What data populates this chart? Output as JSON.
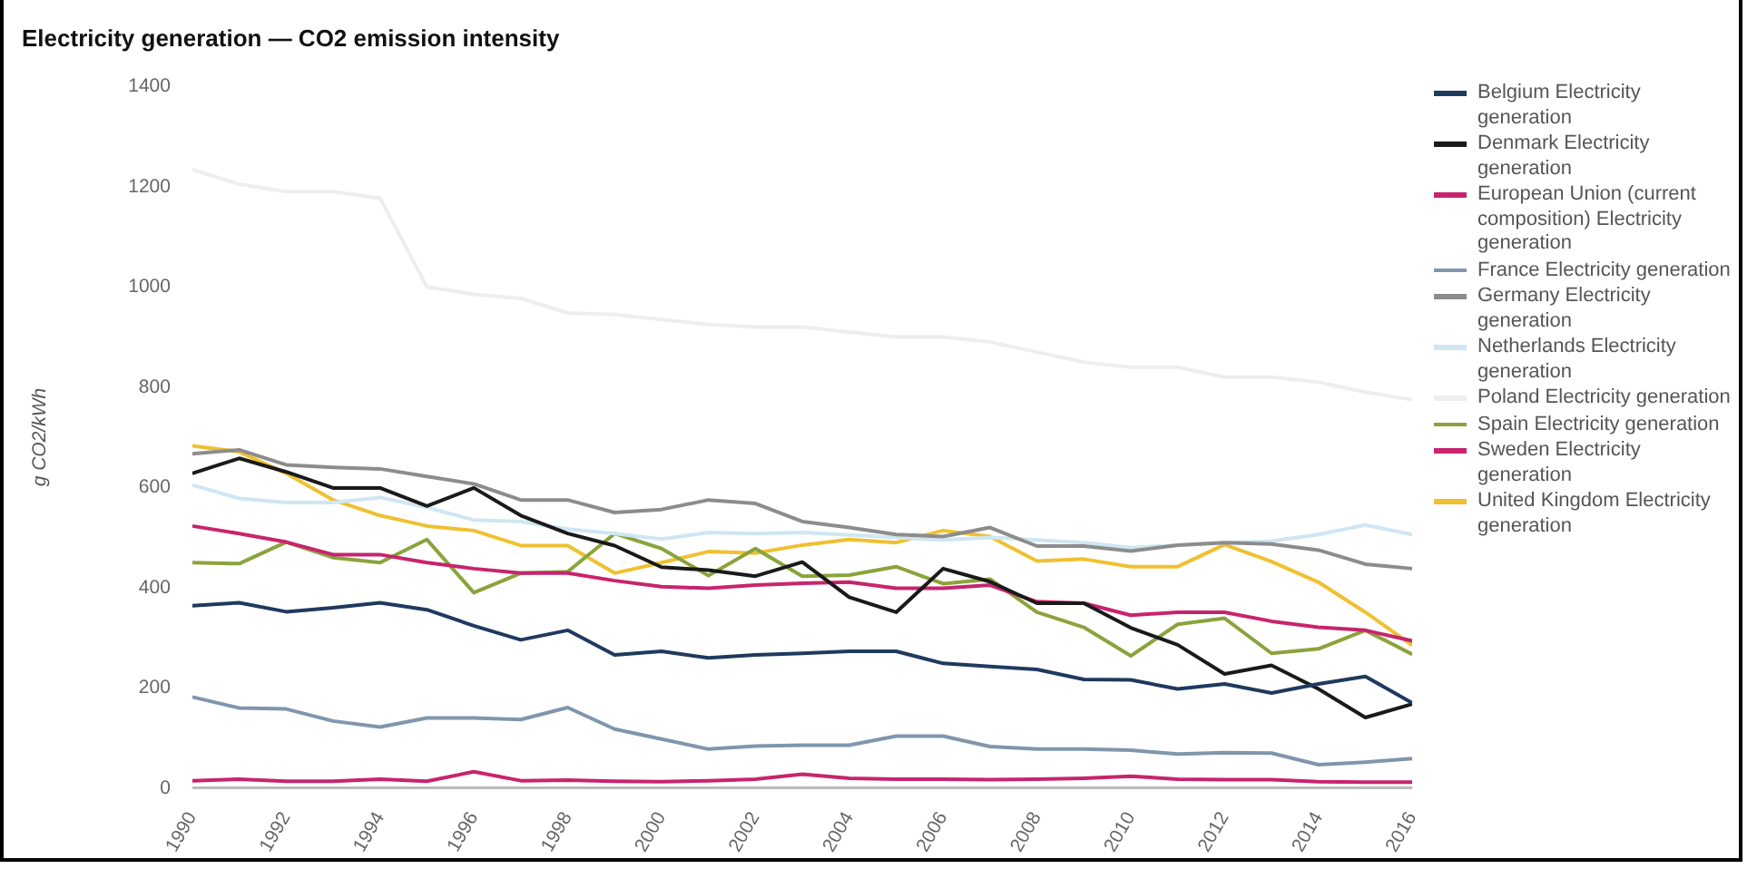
{
  "chart_data": {
    "type": "line",
    "title": "Electricity generation — CO2 emission intensity",
    "ylabel": "g CO2/kWh",
    "x": [
      1990,
      1991,
      1992,
      1993,
      1994,
      1995,
      1996,
      1997,
      1998,
      1999,
      2000,
      2001,
      2002,
      2003,
      2004,
      2005,
      2006,
      2007,
      2008,
      2009,
      2010,
      2011,
      2012,
      2013,
      2014,
      2015,
      2016
    ],
    "xlim": [
      1990,
      2016
    ],
    "xticks": [
      1990,
      1992,
      1994,
      1996,
      1998,
      2000,
      2002,
      2004,
      2006,
      2008,
      2010,
      2012,
      2014,
      2016
    ],
    "ylim": [
      0,
      1400
    ],
    "yticks": [
      0,
      200,
      400,
      600,
      800,
      1000,
      1200,
      1400
    ],
    "grid": false,
    "legend": "right",
    "marker": "none",
    "line_style": "solid",
    "series": [
      {
        "name": "Belgium Electricity generation",
        "color": "#1f3a5f",
        "values": [
          364,
          370,
          352,
          360,
          370,
          356,
          324,
          296,
          315,
          266,
          273,
          260,
          266,
          269,
          273,
          273,
          249,
          243,
          237,
          217,
          216,
          198,
          208,
          190,
          208,
          223,
          170
        ]
      },
      {
        "name": "Denmark Electricity generation",
        "color": "#1a1a1a",
        "values": [
          628,
          658,
          631,
          599,
          599,
          563,
          599,
          544,
          508,
          484,
          441,
          435,
          423,
          451,
          381,
          351,
          438,
          412,
          369,
          369,
          320,
          286,
          228,
          245,
          198,
          141,
          168
        ]
      },
      {
        "name": "European Union (current composition) Electricity generation",
        "color": "#c8246e",
        "values": [
          523,
          508,
          491,
          466,
          466,
          450,
          438,
          429,
          429,
          414,
          402,
          399,
          405,
          409,
          411,
          399,
          399,
          405,
          372,
          369,
          345,
          351,
          351,
          333,
          321,
          315,
          294
        ]
      },
      {
        "name": "France Electricity generation",
        "color": "#7f96ad",
        "values": [
          182,
          160,
          158,
          134,
          122,
          140,
          140,
          137,
          161,
          118,
          98,
          78,
          84,
          86,
          86,
          104,
          104,
          83,
          78,
          78,
          76,
          68,
          71,
          70,
          47,
          52,
          59
        ]
      },
      {
        "name": "Germany Electricity generation",
        "color": "#8c8c8c",
        "values": [
          667,
          675,
          645,
          640,
          637,
          622,
          607,
          575,
          575,
          550,
          556,
          575,
          568,
          532,
          520,
          506,
          502,
          520,
          483,
          483,
          473,
          485,
          490,
          487,
          475,
          447,
          438
        ]
      },
      {
        "name": "Netherlands Electricity generation",
        "color": "#cfe6f3",
        "values": [
          605,
          578,
          570,
          570,
          580,
          560,
          535,
          532,
          517,
          508,
          497,
          510,
          508,
          510,
          505,
          500,
          495,
          500,
          495,
          490,
          480,
          485,
          490,
          493,
          506,
          525,
          506
        ]
      },
      {
        "name": "Poland Electricity generation",
        "color": "#eeeeee",
        "values": [
          1234,
          1205,
          1190,
          1190,
          1177,
          1000,
          985,
          977,
          948,
          945,
          935,
          925,
          920,
          920,
          910,
          900,
          900,
          890,
          870,
          850,
          840,
          840,
          820,
          820,
          810,
          790,
          775
        ]
      },
      {
        "name": "Spain Electricity generation",
        "color": "#8aa33c",
        "values": [
          450,
          448,
          491,
          460,
          450,
          496,
          390,
          429,
          432,
          508,
          478,
          424,
          478,
          423,
          425,
          442,
          408,
          417,
          351,
          321,
          264,
          327,
          339,
          269,
          278,
          315,
          267
        ]
      },
      {
        "name": "Sweden Electricity generation",
        "color": "#c8246e",
        "values": [
          15,
          18,
          14,
          14,
          18,
          14,
          33,
          15,
          16,
          14,
          13,
          15,
          18,
          28,
          20,
          18,
          18,
          17,
          18,
          20,
          24,
          18,
          17,
          17,
          13,
          12,
          12
        ]
      },
      {
        "name": "United Kingdom Electricity generation",
        "color": "#f0c030",
        "values": [
          683,
          671,
          628,
          575,
          544,
          523,
          514,
          484,
          484,
          429,
          450,
          472,
          469,
          485,
          496,
          490,
          514,
          502,
          453,
          457,
          442,
          442,
          486,
          452,
          411,
          351,
          285
        ]
      }
    ]
  }
}
